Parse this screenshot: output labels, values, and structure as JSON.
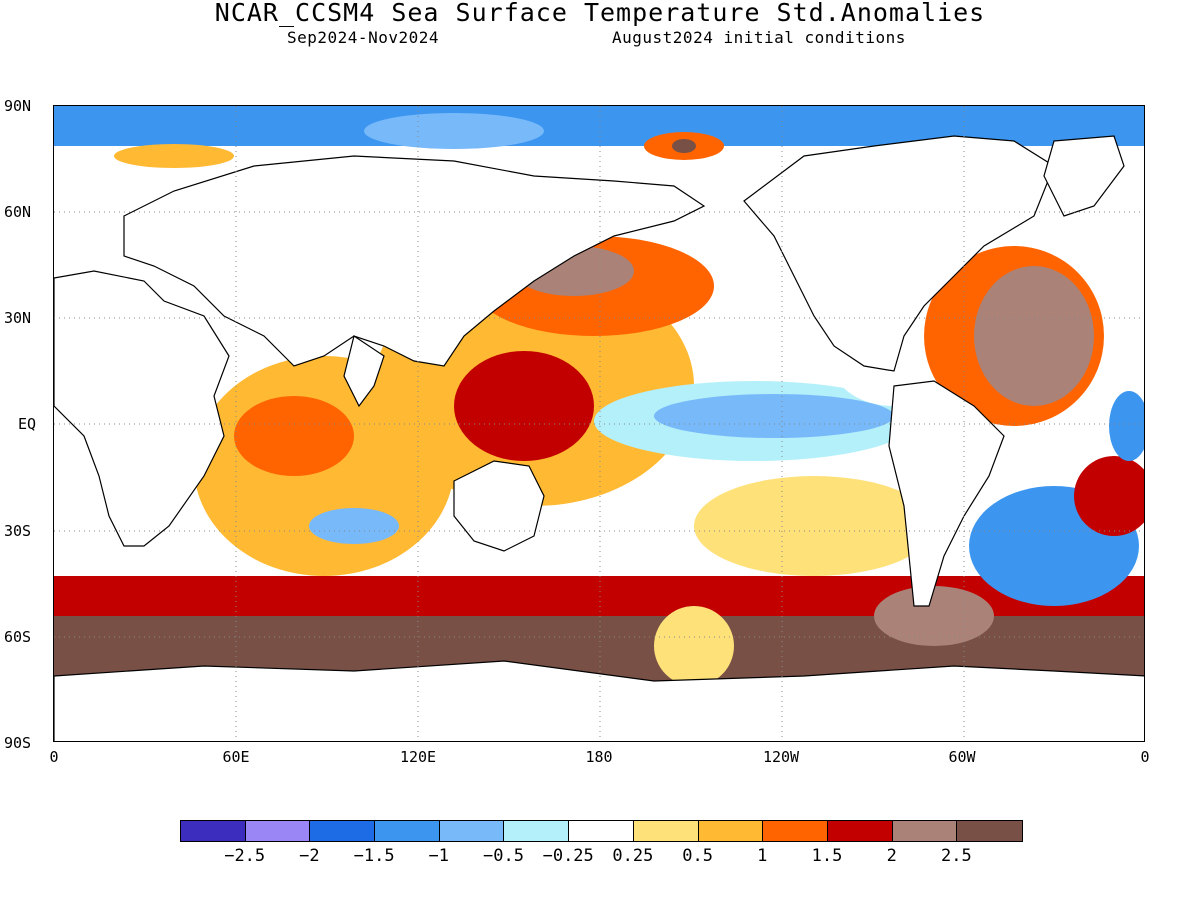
{
  "header": {
    "title": "NCAR_CCSM4 Sea Surface Temperature Std.Anomalies",
    "period": "Sep2024-Nov2024",
    "init": "August2024 initial conditions"
  },
  "axes": {
    "y_labels": [
      "90N",
      "60N",
      "30N",
      "EQ",
      "30S",
      "60S",
      "90S"
    ],
    "x_labels": [
      "0",
      "60E",
      "120E",
      "180",
      "120W",
      "60W",
      "0"
    ]
  },
  "colorbar": {
    "colors": [
      "#3c2dbe",
      "#9a86f5",
      "#1e6be6",
      "#3c96f0",
      "#78b9fa",
      "#b4f0fa",
      "#ffffff",
      "#ffe17a",
      "#ffb932",
      "#ff6400",
      "#c30000",
      "#aa8278",
      "#785046"
    ],
    "labels": [
      "-2.5",
      "-2",
      "-1.5",
      "-1",
      "-0.5",
      "-0.25",
      "0.25",
      "0.5",
      "1",
      "1.5",
      "2",
      "2.5"
    ]
  },
  "map_data": {
    "land_color": "#ffffff",
    "coastline_color": "#000000",
    "grid": "dotted",
    "lon_range": "0 to 360",
    "lat_range": "90S to 90N"
  }
}
